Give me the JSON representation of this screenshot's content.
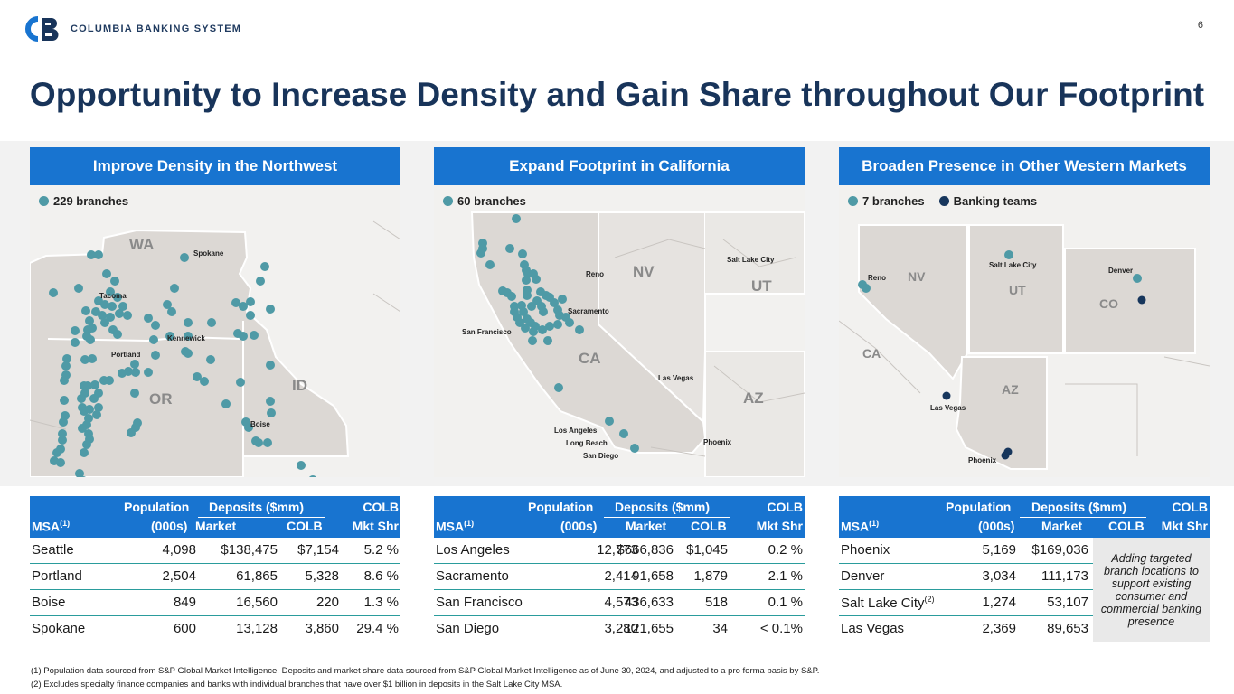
{
  "header": {
    "logo_text": "COLUMBIA BANKING SYSTEM",
    "page_number": "6",
    "title": "Opportunity to Increase Density and Gain Share throughout Our Footprint"
  },
  "colors": {
    "brand_blue": "#1874d0",
    "navy": "#18345a",
    "branch_dot": "#4f9aa6",
    "team_dot": "#17365c"
  },
  "panels": [
    {
      "heading": "Improve Density in the Northwest",
      "legend": "229 branches",
      "states": [
        "WA",
        "OR",
        "ID"
      ],
      "cities": [
        "Spokane",
        "Tacoma",
        "Kennewick",
        "Portland",
        "Boise"
      ]
    },
    {
      "heading": "Expand Footprint in California",
      "legend": "60 branches",
      "states": [
        "NV",
        "UT",
        "CA",
        "AZ"
      ],
      "cities": [
        "Salt Lake City",
        "Reno",
        "Sacramento",
        "San Francisco",
        "Las Vegas",
        "Los Angeles",
        "Long Beach",
        "San Diego",
        "Phoenix"
      ]
    },
    {
      "heading": "Broaden Presence in Other Western Markets",
      "legend": "7 branches",
      "legend2": "Banking teams",
      "states": [
        "NV",
        "UT",
        "CO",
        "CA",
        "AZ"
      ],
      "cities": [
        "Reno",
        "Salt Lake City",
        "Denver",
        "Las Vegas",
        "Phoenix"
      ]
    }
  ],
  "table_headers": {
    "population": "Population",
    "deposits": "Deposits ($mm)",
    "colb": "COLB",
    "msa": "MSA",
    "msa_note": "(1)",
    "thousands": "(000s)",
    "market": "Market",
    "colb_col": "COLB",
    "mkt_shr": "Mkt Shr"
  },
  "tables": [
    {
      "rows": [
        {
          "msa": "Seattle",
          "pop": "4,098",
          "market": "$138,475",
          "colb": "$7,154",
          "share": "5.2 %"
        },
        {
          "msa": "Portland",
          "pop": "2,504",
          "market": "61,865",
          "colb": "5,328",
          "share": "8.6 %"
        },
        {
          "msa": "Boise",
          "pop": "849",
          "market": "16,560",
          "colb": "220",
          "share": "1.3 %"
        },
        {
          "msa": "Spokane",
          "pop": "600",
          "market": "13,128",
          "colb": "3,860",
          "share": "29.4 %"
        }
      ]
    },
    {
      "rows": [
        {
          "msa": "Los Angeles",
          "pop": "12,773",
          "market": "$666,836",
          "colb": "$1,045",
          "share": "0.2 %"
        },
        {
          "msa": "Sacramento",
          "pop": "2,414",
          "market": "91,658",
          "colb": "1,879",
          "share": "2.1 %"
        },
        {
          "msa": "San Francisco",
          "pop": "4,573",
          "market": "436,633",
          "colb": "518",
          "share": "0.1 %"
        },
        {
          "msa": "San Diego",
          "pop": "3,280",
          "market": "121,655",
          "colb": "34",
          "share": "< 0.1%"
        }
      ]
    },
    {
      "rows": [
        {
          "msa": "Phoenix",
          "pop": "5,169",
          "market": "$169,036"
        },
        {
          "msa": "Denver",
          "pop": "3,034",
          "market": "111,173"
        },
        {
          "msa": "Salt Lake City",
          "msa_note": "(2)",
          "pop": "1,274",
          "market": "53,107"
        },
        {
          "msa": "Las Vegas",
          "pop": "2,369",
          "market": "89,653"
        }
      ],
      "note": "Adding targeted branch locations to support existing consumer and commercial banking presence"
    }
  ],
  "footnotes": [
    "(1)   Population data sourced from S&P Global Market Intelligence. Deposits and market share data sourced from S&P Global Market Intelligence as of June 30, 2024, and adjusted to a pro forma basis by S&P.",
    "(2)   Excludes specialty finance companies and banks with individual branches that have over $1 billion in deposits in the Salt Lake City MSA."
  ]
}
